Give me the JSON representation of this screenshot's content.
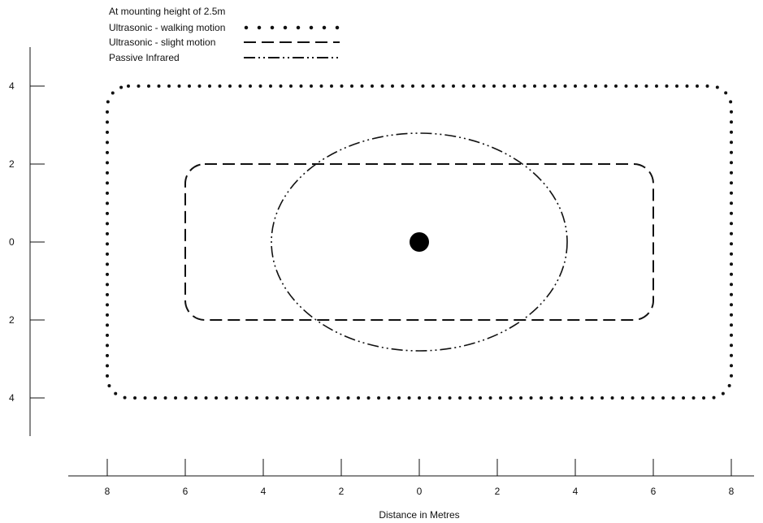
{
  "legend": {
    "heading": "At mounting height of 2.5m",
    "items": [
      {
        "label": "Ultrasonic - walking motion",
        "style": "dotted"
      },
      {
        "label": "Ultrasonic - slight motion",
        "style": "dashed"
      },
      {
        "label": "Passive Infrared",
        "style": "dash-dot-dot"
      }
    ]
  },
  "y_axis": {
    "tick_labels": [
      "4",
      "2",
      "0",
      "2",
      "4"
    ],
    "values": [
      4,
      2,
      0,
      -2,
      -4
    ]
  },
  "x_axis": {
    "title": "Distance in Metres",
    "tick_labels": [
      "8",
      "6",
      "4",
      "2",
      "0",
      "2",
      "4",
      "6",
      "8"
    ],
    "values": [
      -8,
      -6,
      -4,
      -2,
      0,
      2,
      4,
      6,
      8
    ]
  },
  "chart_data": {
    "type": "diagram",
    "units": "metres",
    "sensor_position": {
      "x": 0,
      "y": 0
    },
    "coverage_zones": [
      {
        "name": "Ultrasonic - walking motion",
        "shape": "rounded-rectangle",
        "x_range": [
          -8,
          8
        ],
        "y_range": [
          -4,
          4
        ]
      },
      {
        "name": "Ultrasonic - slight motion",
        "shape": "rounded-rectangle",
        "x_range": [
          -6,
          6
        ],
        "y_range": [
          -2,
          2
        ]
      },
      {
        "name": "Passive Infrared",
        "shape": "ellipse",
        "x_range": [
          -3.8,
          3.8
        ],
        "y_range": [
          -2.8,
          2.8
        ]
      }
    ],
    "colors": {
      "line": "#111111",
      "sensor": "#000000"
    }
  }
}
